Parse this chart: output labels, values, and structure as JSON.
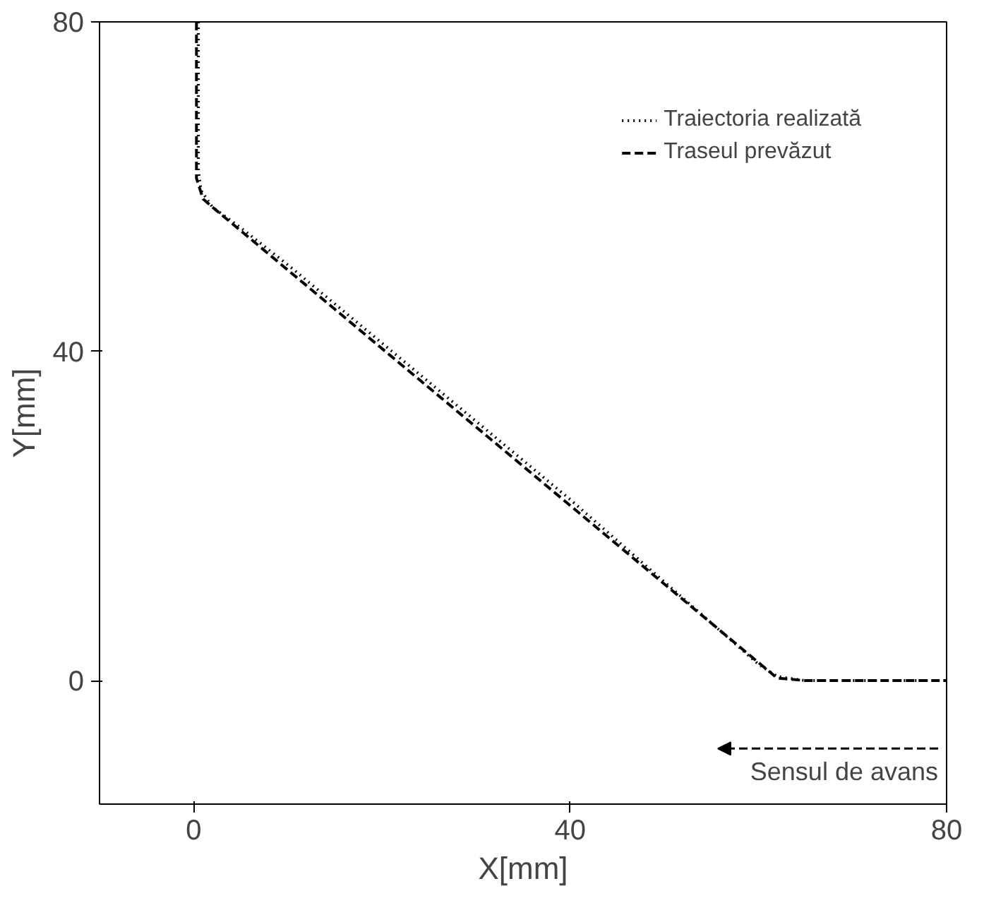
{
  "chart_data": {
    "type": "line",
    "xlabel": "X[mm]",
    "ylabel": "Y[mm]",
    "xlim": [
      -10,
      80
    ],
    "ylim": [
      -15,
      80
    ],
    "xticks": [
      0,
      40,
      80
    ],
    "yticks": [
      0,
      40,
      80
    ],
    "grid": false,
    "legend": "top right",
    "series": [
      {
        "name": "Traiectoria realizată",
        "color": "#000000",
        "line_style": "dotted",
        "x": [
          0.5,
          0.5,
          0.8,
          2,
          5,
          10,
          20,
          30,
          40,
          50,
          55,
          58,
          60,
          62,
          65,
          80
        ],
        "values": [
          80,
          62,
          59.5,
          57.5,
          55,
          50.5,
          41,
          31.5,
          22,
          12,
          7,
          4,
          2,
          0.5,
          0,
          0
        ]
      },
      {
        "name": "Traseul prevăzut",
        "color": "#000000",
        "line_style": "dashed",
        "x": [
          0.3,
          0.3,
          1,
          2,
          62,
          65,
          80
        ],
        "values": [
          80,
          61,
          58.5,
          57.5,
          0.3,
          0,
          0
        ]
      }
    ],
    "annotations": [
      "Sensul de avans"
    ]
  }
}
